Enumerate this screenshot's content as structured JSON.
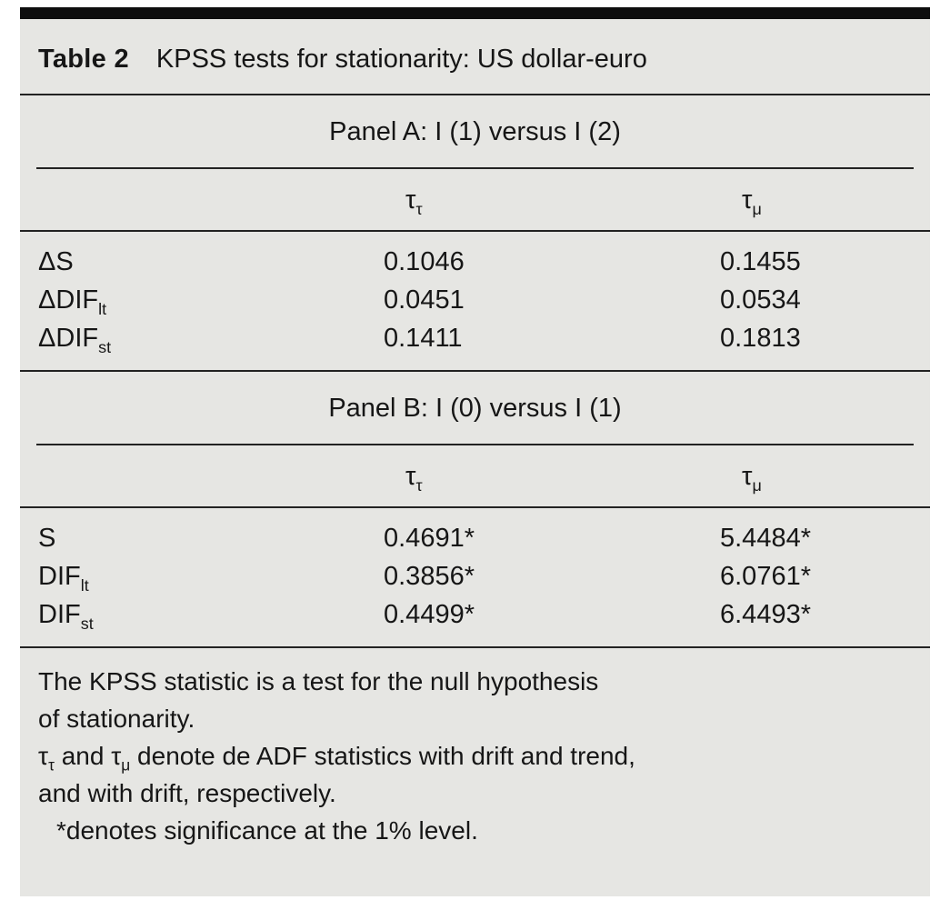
{
  "table": {
    "number": "Table 2",
    "caption": "KPSS tests for stationarity: US dollar-euro"
  },
  "columns": [
    {
      "main": "τ",
      "sub": "τ"
    },
    {
      "main": "τ",
      "sub": "μ"
    }
  ],
  "panelA": {
    "title": "Panel A: I (1) versus I (2)",
    "rows": [
      {
        "label": "ΔS",
        "label_sub": "",
        "col1": "0.1046",
        "col2": "0.1455"
      },
      {
        "label": "ΔDIF",
        "label_sub": "lt",
        "col1": "0.0451",
        "col2": "0.0534"
      },
      {
        "label": "ΔDIF",
        "label_sub": "st",
        "col1": "0.1411",
        "col2": "0.1813"
      }
    ]
  },
  "panelB": {
    "title": "Panel B: I (0) versus I (1)",
    "rows": [
      {
        "label": "S",
        "label_sub": "",
        "col1": "0.4691*",
        "col2": "5.4484*"
      },
      {
        "label": "DIF",
        "label_sub": "lt",
        "col1": "0.3856*",
        "col2": "6.0761*"
      },
      {
        "label": "DIF",
        "label_sub": "st",
        "col1": "0.4499*",
        "col2": "6.4493*"
      }
    ]
  },
  "notes": {
    "line1": "The KPSS statistic is a test for the null hypothesis",
    "line2": "of stationarity.",
    "line3": {
      "t1": "τ",
      "s1": "τ",
      "t2": " and ",
      "t3": "τ",
      "s2": "μ",
      "t4": " denote de ADF statistics with drift and trend,"
    },
    "line4": "and with drift, respectively.",
    "line5": "*denotes significance at the 1% level."
  },
  "colors": {
    "card_bg": "#e6e6e3",
    "rule": "#222222",
    "text": "#161616",
    "top_bar": "#0e0e0e"
  }
}
